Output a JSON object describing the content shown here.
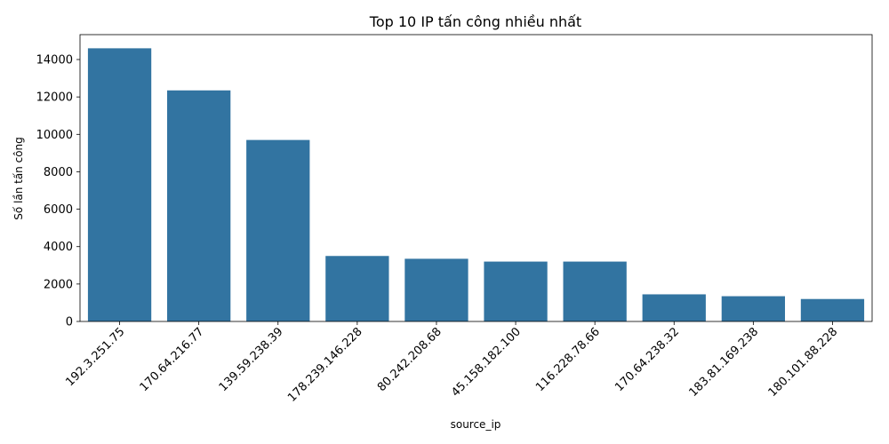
{
  "chart_data": {
    "type": "bar",
    "title": "Top 10 IP tấn công nhiều nhất",
    "xlabel": "source_ip",
    "ylabel": "Số lần tấn công",
    "categories": [
      "192.3.251.75",
      "170.64.216.77",
      "139.59.238.39",
      "178.239.146.228",
      "80.242.208.68",
      "45.158.182.100",
      "116.228.78.66",
      "170.64.238.32",
      "183.81.169.238",
      "180.101.88.228"
    ],
    "values": [
      14600,
      12350,
      9700,
      3500,
      3350,
      3200,
      3200,
      1450,
      1350,
      1200
    ],
    "yticks": [
      0,
      2000,
      4000,
      6000,
      8000,
      10000,
      12000,
      14000
    ],
    "ylim": [
      0,
      15330
    ],
    "bar_color": "#3274a1",
    "grid": false,
    "legend": false
  }
}
